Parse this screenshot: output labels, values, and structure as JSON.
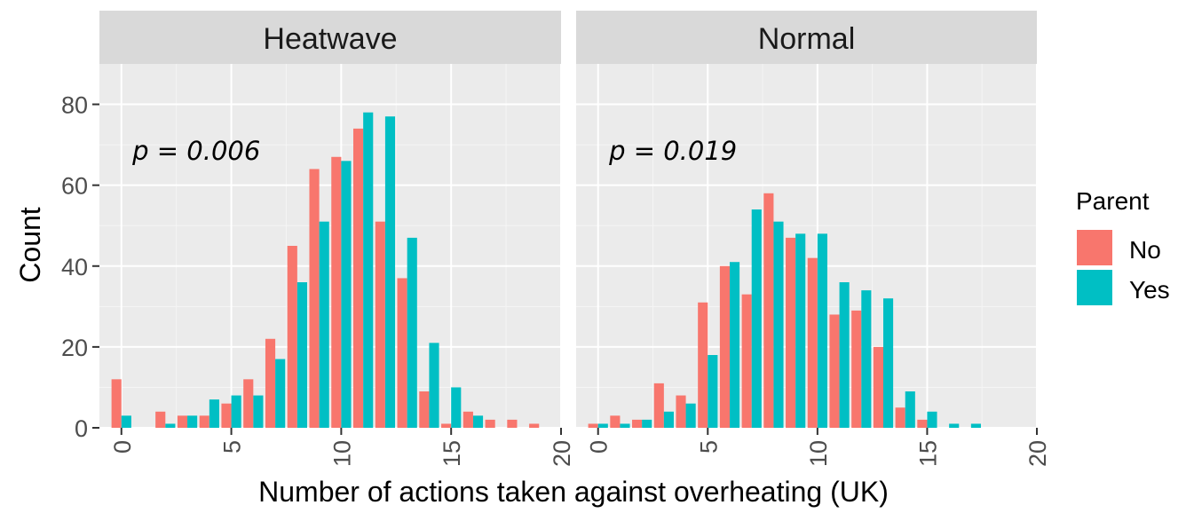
{
  "chart_data": {
    "type": "bar",
    "xlabel": "Number of actions taken against overheating (UK)",
    "ylabel": "Count",
    "xlim": [
      -1,
      20
    ],
    "ylim": [
      0,
      90
    ],
    "x_ticks": [
      "0",
      "5",
      "10",
      "15",
      "20"
    ],
    "y_ticks": [
      "0",
      "20",
      "40",
      "60",
      "80"
    ],
    "grid": true,
    "legend": {
      "title": "Parent",
      "position": "right",
      "entries": [
        {
          "label": "No",
          "color": "#F8766D"
        },
        {
          "label": "Yes",
          "color": "#00BFC4"
        }
      ]
    },
    "panels": [
      {
        "strip": "Heatwave",
        "annotation": "p = 0.006",
        "series": [
          {
            "name": "No",
            "color": "#F8766D",
            "x": [
              0,
              2,
              3,
              4,
              5,
              6,
              7,
              8,
              9,
              10,
              11,
              12,
              13,
              14,
              15,
              16,
              17,
              18,
              19
            ],
            "values": [
              12,
              4,
              3,
              3,
              6,
              12,
              22,
              45,
              64,
              67,
              74,
              51,
              37,
              9,
              1,
              4,
              2,
              2,
              1
            ]
          },
          {
            "name": "Yes",
            "color": "#00BFC4",
            "x": [
              0,
              2,
              3,
              4,
              5,
              6,
              7,
              8,
              9,
              10,
              11,
              12,
              13,
              14,
              15,
              16
            ],
            "values": [
              3,
              1,
              3,
              7,
              8,
              8,
              17,
              36,
              51,
              66,
              78,
              77,
              47,
              21,
              10,
              3
            ]
          }
        ]
      },
      {
        "strip": "Normal",
        "annotation": "p = 0.019",
        "series": [
          {
            "name": "No",
            "color": "#F8766D",
            "x": [
              0,
              1,
              2,
              3,
              4,
              5,
              6,
              7,
              8,
              9,
              10,
              11,
              12,
              13,
              14,
              15
            ],
            "values": [
              1,
              3,
              2,
              11,
              8,
              31,
              40,
              33,
              58,
              47,
              42,
              28,
              29,
              20,
              5,
              2
            ]
          },
          {
            "name": "Yes",
            "color": "#00BFC4",
            "x": [
              0,
              1,
              2,
              3,
              4,
              5,
              6,
              7,
              8,
              9,
              10,
              11,
              12,
              13,
              14,
              15,
              16,
              17
            ],
            "values": [
              1,
              1,
              2,
              4,
              6,
              18,
              41,
              54,
              51,
              48,
              48,
              36,
              34,
              32,
              9,
              4,
              1,
              1
            ]
          }
        ]
      }
    ]
  }
}
